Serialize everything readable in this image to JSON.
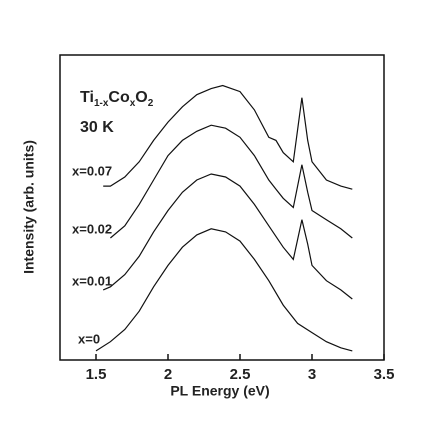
{
  "chart_data": {
    "type": "line",
    "material": [
      "Ti",
      "1-x",
      "Co",
      "x",
      "O",
      "2"
    ],
    "temperature": "30 K",
    "xlabel": "PL Energy (eV)",
    "ylabel": "Intensity (arb. units)",
    "xlim": [
      1.25,
      3.5
    ],
    "ylim": [
      0,
      10
    ],
    "xticks": [
      1.5,
      2.0,
      2.5,
      3.0,
      3.5
    ],
    "color": "#111111",
    "series": [
      {
        "name": "x=0",
        "x": [
          1.5,
          1.6,
          1.7,
          1.8,
          1.9,
          2.0,
          2.1,
          2.2,
          2.3,
          2.4,
          2.5,
          2.6,
          2.7,
          2.8,
          2.9,
          3.0,
          3.1,
          3.2,
          3.28
        ],
        "values": [
          0.3,
          0.6,
          1.0,
          1.6,
          2.4,
          3.1,
          3.7,
          4.1,
          4.3,
          4.2,
          3.9,
          3.3,
          2.6,
          1.8,
          1.2,
          0.9,
          0.6,
          0.4,
          0.3
        ]
      },
      {
        "name": "x=0.01",
        "x": [
          1.55,
          1.6,
          1.7,
          1.8,
          1.9,
          2.0,
          2.1,
          2.2,
          2.3,
          2.4,
          2.5,
          2.6,
          2.7,
          2.8,
          2.87,
          2.93,
          2.97,
          3.0,
          3.1,
          3.2,
          3.28
        ],
        "values": [
          2.3,
          2.4,
          2.8,
          3.4,
          4.2,
          4.9,
          5.5,
          5.9,
          6.1,
          6.0,
          5.7,
          5.1,
          4.4,
          3.7,
          3.3,
          4.6,
          3.8,
          3.1,
          2.6,
          2.3,
          2.0
        ]
      },
      {
        "name": "x=0.02",
        "x": [
          1.6,
          1.7,
          1.8,
          1.9,
          2.0,
          2.1,
          2.2,
          2.3,
          2.4,
          2.5,
          2.6,
          2.7,
          2.75,
          2.8,
          2.87,
          2.93,
          2.97,
          3.0,
          3.1,
          3.2,
          3.28
        ],
        "values": [
          4.0,
          4.4,
          5.1,
          5.9,
          6.7,
          7.2,
          7.5,
          7.7,
          7.6,
          7.3,
          6.7,
          5.9,
          5.6,
          5.3,
          5.0,
          6.4,
          5.5,
          4.9,
          4.6,
          4.3,
          4.0
        ]
      },
      {
        "name": "x=0.07",
        "x": [
          1.55,
          1.6,
          1.7,
          1.8,
          1.9,
          2.0,
          2.1,
          2.2,
          2.3,
          2.38,
          2.5,
          2.6,
          2.7,
          2.75,
          2.8,
          2.87,
          2.93,
          2.97,
          3.0,
          3.1,
          3.2,
          3.28
        ],
        "values": [
          5.7,
          5.7,
          6.0,
          6.5,
          7.2,
          7.8,
          8.3,
          8.7,
          8.9,
          9.0,
          8.8,
          8.2,
          7.3,
          7.2,
          6.8,
          6.5,
          8.6,
          7.2,
          6.5,
          5.9,
          5.7,
          5.6
        ]
      }
    ]
  }
}
